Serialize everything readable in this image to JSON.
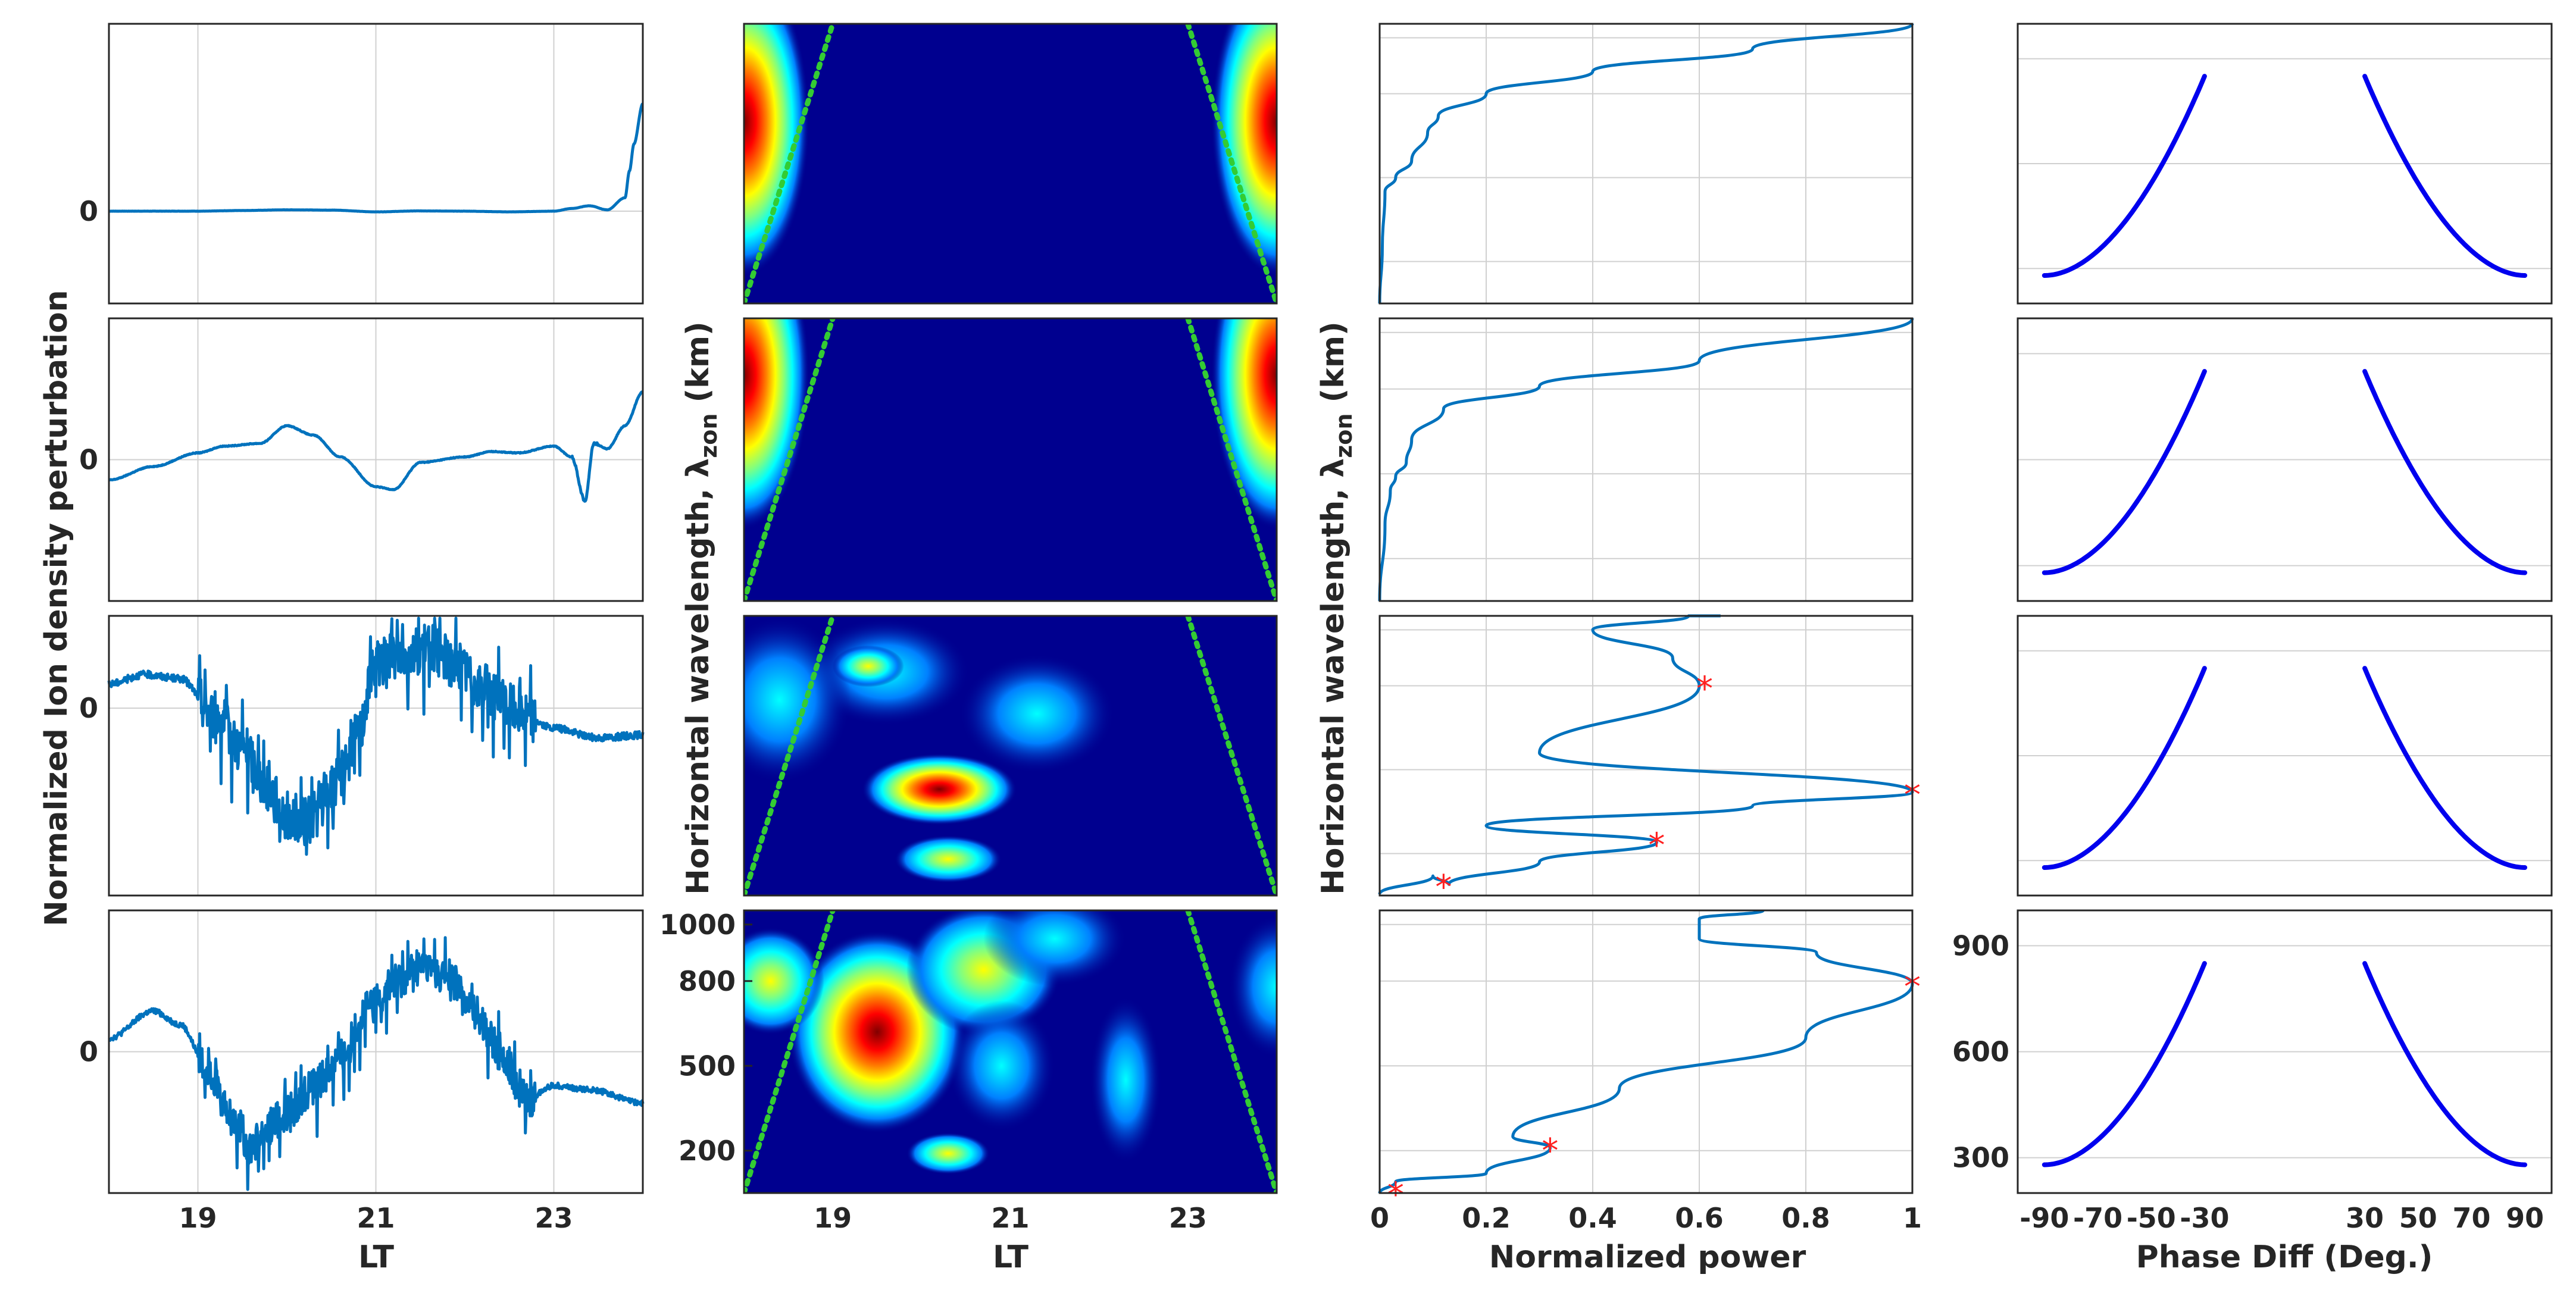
{
  "colors": {
    "signal": "#0072BD",
    "phase": "#0000ee",
    "cone_of_influence": "#33cc33",
    "peak_marker": "#ff2020",
    "wavelet_background": "#00008f",
    "jet_colormap": [
      "#00008f",
      "#0000ff",
      "#0080ff",
      "#00ffff",
      "#80ff80",
      "#ffff00",
      "#ff8000",
      "#ff0000",
      "#800000"
    ]
  },
  "labels": {
    "col1_ylabel": "Normalized Ion density perturbation",
    "col2_ylabel": "Horizontal wavelength, λ",
    "col2_ylabel_sub": "zon",
    "col2_ylabel_unit": " (km)",
    "col3_ylabel": "Horizontal wavelength, λ",
    "col3_ylabel_sub": "zon",
    "col3_ylabel_unit": " (km)",
    "col1_xlabel": "LT",
    "col2_xlabel": "LT",
    "col3_xlabel": "Normalized power",
    "col4_xlabel": "Phase Diff (Deg.)"
  },
  "ticks": {
    "lt": [
      "19",
      "21",
      "23"
    ],
    "zero": "0",
    "wavelength": [
      "1000",
      "800",
      "500",
      "200"
    ],
    "power": [
      "0",
      "0.2",
      "0.4",
      "0.6",
      "0.8",
      "1"
    ],
    "phase_y": [
      "900",
      "600",
      "300"
    ],
    "phase_x": [
      "-90",
      "-70",
      "-50",
      "-30",
      "30",
      "50",
      "70",
      "90"
    ]
  },
  "chart_data": [
    {
      "type": "line",
      "panel": "column 1 (4 rows): normalized ion density perturbation vs local time",
      "xlabel": "LT",
      "ylabel": "Normalized Ion density perturbation",
      "xlim": [
        18,
        24
      ],
      "xticks": [
        19,
        21,
        23
      ],
      "yticks": [
        0
      ],
      "grid": true,
      "series": [
        {
          "x": [
            18,
            19,
            19.5,
            20,
            20.5,
            21,
            21.5,
            22,
            22.5,
            23,
            23.2,
            23.4,
            23.6,
            23.8,
            23.85,
            23.9,
            24
          ],
          "values": [
            0,
            0,
            0.005,
            0.01,
            0.008,
            -0.005,
            0.002,
            0,
            -0.005,
            0,
            0.02,
            0.04,
            0.01,
            0.1,
            0.3,
            0.5,
            0.8
          ]
        },
        {
          "x": [
            18,
            18.5,
            19,
            19.3,
            19.7,
            20,
            20.3,
            20.6,
            21,
            21.2,
            21.5,
            22,
            22.3,
            22.6,
            23,
            23.2,
            23.35,
            23.45,
            23.6,
            23.8,
            24
          ],
          "values": [
            -0.15,
            -0.05,
            0.05,
            0.1,
            0.12,
            0.25,
            0.18,
            0.02,
            -0.2,
            -0.22,
            -0.02,
            0.02,
            0.06,
            0.05,
            0.1,
            0.02,
            -0.3,
            0.12,
            0.08,
            0.25,
            0.5
          ]
        },
        {
          "x": [
            18,
            18.4,
            18.8,
            19.2,
            19.5,
            19.8,
            20,
            20.2,
            20.5,
            20.8,
            21,
            21.3,
            21.6,
            21.9,
            22.2,
            22.5,
            23,
            23.5,
            24
          ],
          "values": [
            0.18,
            0.25,
            0.22,
            -0.05,
            -0.3,
            -0.6,
            -0.8,
            -0.85,
            -0.6,
            -0.2,
            0.35,
            0.4,
            0.45,
            0.32,
            0.15,
            0.02,
            -0.15,
            -0.22,
            -0.2
          ]
        },
        {
          "x": [
            18,
            18.5,
            18.8,
            19.1,
            19.4,
            19.6,
            19.8,
            20,
            20.3,
            20.6,
            20.9,
            21.2,
            21.5,
            21.8,
            22.1,
            22.4,
            22.7,
            23,
            23.4,
            24
          ],
          "values": [
            0.1,
            0.3,
            0.2,
            -0.1,
            -0.5,
            -0.7,
            -0.55,
            -0.45,
            -0.25,
            -0.05,
            0.3,
            0.5,
            0.62,
            0.55,
            0.3,
            0.0,
            -0.35,
            -0.25,
            -0.28,
            -0.38
          ]
        }
      ]
    },
    {
      "type": "heatmap",
      "panel": "column 2 (4 rows): wavelet power spectrum, zonal wavelength vs local time",
      "xlabel": "LT",
      "ylabel": "Horizontal wavelength, λzon (km)",
      "xlim": [
        18,
        24
      ],
      "xticks": [
        19,
        21,
        23
      ],
      "ylim": [
        50,
        1050
      ],
      "yticks": [
        200,
        500,
        800,
        1000
      ],
      "cone_of_influence": {
        "left_x": [
          18,
          19
        ],
        "right_x": [
          23,
          24
        ]
      },
      "hotspots": [
        {
          "row": 1,
          "x": [
            18,
            24
          ],
          "y": [
            300,
            1000
          ],
          "level": 0.9
        },
        {
          "row": 2,
          "x": [
            18,
            24
          ],
          "y": [
            500,
            1000
          ],
          "level": 0.9
        },
        {
          "row": 3,
          "x": 20.2,
          "y": 430,
          "level": 0.85
        },
        {
          "row": 3,
          "x": 20.3,
          "y": 180,
          "level": 0.7
        },
        {
          "row": 4,
          "x": 19.5,
          "y": 620,
          "level": 0.95
        },
        {
          "row": 4,
          "x": 20.3,
          "y": 190,
          "level": 0.7
        },
        {
          "row": 4,
          "x": 20.6,
          "y": 840,
          "level": 0.5
        }
      ]
    },
    {
      "type": "line",
      "panel": "column 3 (4 rows): normalized power vs zonal wavelength",
      "xlabel": "Normalized power",
      "ylabel": "Horizontal wavelength, λzon (km)",
      "xlim": [
        0,
        1
      ],
      "xticks": [
        0,
        0.2,
        0.4,
        0.6,
        0.8,
        1
      ],
      "ylim": [
        50,
        1050
      ],
      "series": [
        {
          "x": [
            0,
            0.005,
            0.01,
            0.03,
            0.06,
            0.09,
            0.11,
            0.2,
            0.4,
            0.7,
            1.0
          ],
          "y": [
            50,
            250,
            450,
            500,
            560,
            660,
            720,
            800,
            880,
            960,
            1050
          ]
        },
        {
          "x": [
            0,
            0.01,
            0.02,
            0.03,
            0.05,
            0.06,
            0.12,
            0.3,
            0.6,
            1.0
          ],
          "y": [
            50,
            320,
            440,
            490,
            540,
            620,
            730,
            810,
            900,
            1050
          ]
        },
        {
          "x": [
            0,
            0.1,
            0.13,
            0.3,
            0.52,
            0.2,
            0.7,
            1.0,
            0.3,
            0.6,
            0.55,
            0.4,
            0.58,
            0.64
          ],
          "y": [
            55,
            120,
            90,
            170,
            240,
            300,
            370,
            420,
            560,
            800,
            900,
            1000,
            1050,
            1050
          ]
        },
        {
          "x": [
            0,
            0.03,
            0.2,
            0.32,
            0.25,
            0.45,
            0.8,
            1.0,
            0.82,
            0.6,
            0.6,
            0.72
          ],
          "y": [
            50,
            90,
            120,
            210,
            250,
            420,
            600,
            790,
            900,
            950,
            1020,
            1050
          ]
        }
      ],
      "peaks": [
        {
          "row": 3,
          "x": 0.61,
          "y": 800
        },
        {
          "row": 3,
          "x": 1.0,
          "y": 420
        },
        {
          "row": 3,
          "x": 0.52,
          "y": 240
        },
        {
          "row": 3,
          "x": 0.12,
          "y": 90
        },
        {
          "row": 4,
          "x": 1.0,
          "y": 790
        },
        {
          "row": 4,
          "x": 0.32,
          "y": 210
        },
        {
          "row": 4,
          "x": 0.03,
          "y": 55
        }
      ]
    },
    {
      "type": "line",
      "panel": "column 4 (4 rows): zonal wavelength vs phase difference",
      "xlabel": "Phase Diff (Deg.)",
      "ylabel": "Horizontal wavelength, λzon (km)",
      "xlim": [
        -100,
        100
      ],
      "xticks": [
        -90,
        -70,
        -50,
        -30,
        30,
        50,
        70,
        90
      ],
      "ylim": [
        200,
        1000
      ],
      "yticks": [
        300,
        600,
        900
      ],
      "series": [
        {
          "name": "left",
          "x_range": [
            -90,
            -30
          ],
          "y_range": [
            280,
            850
          ]
        },
        {
          "name": "right",
          "x_range": [
            30,
            90
          ],
          "y_range": [
            850,
            280
          ]
        }
      ]
    }
  ]
}
